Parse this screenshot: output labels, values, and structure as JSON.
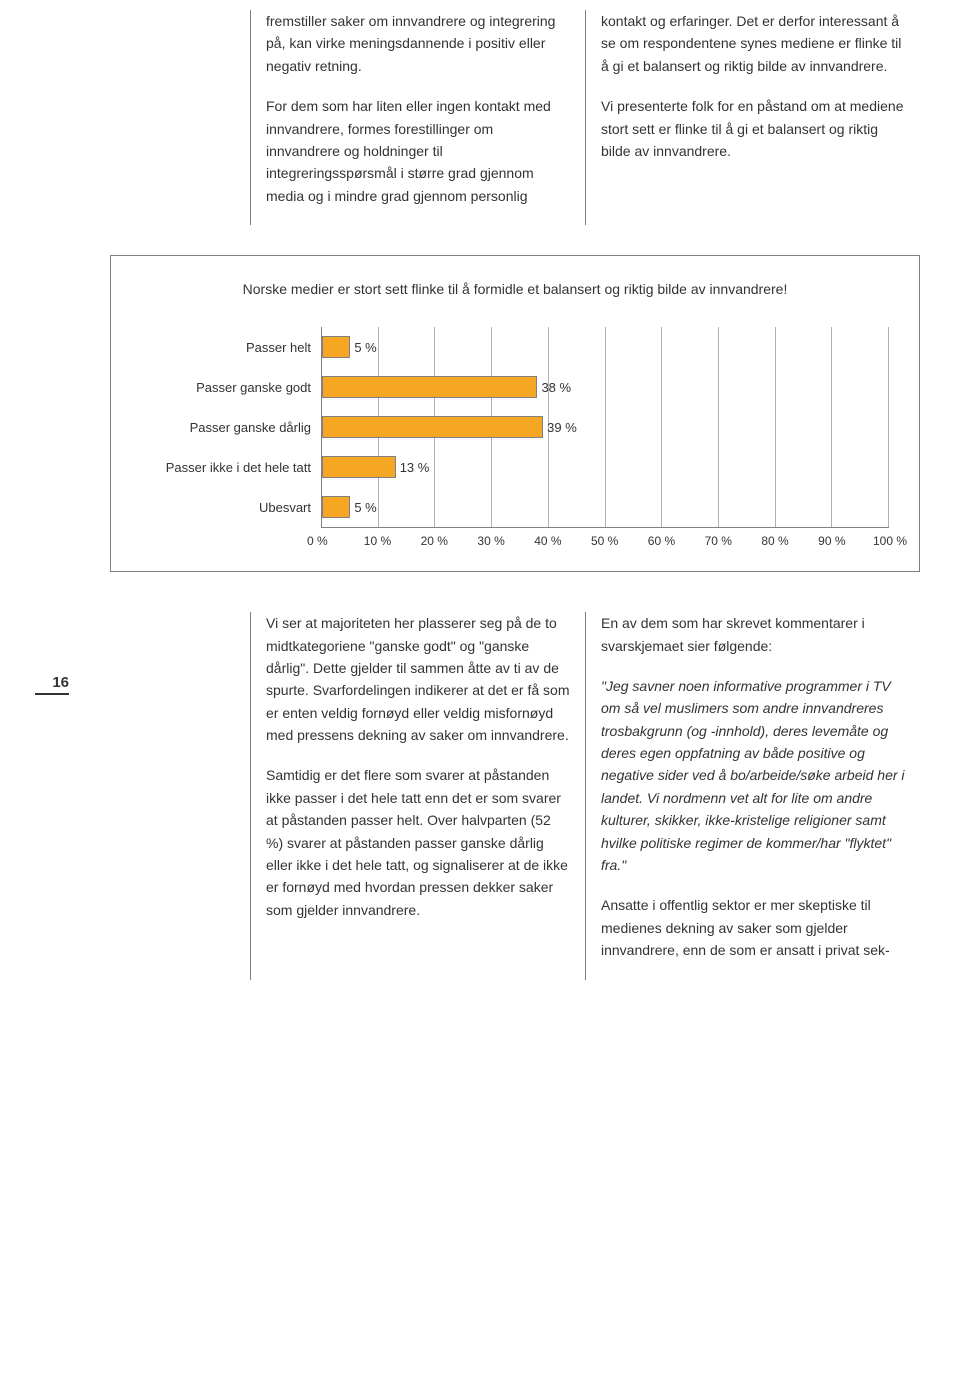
{
  "page_number": "16",
  "top_columns": {
    "left": {
      "p1": "fremstiller saker om innvandrere og integrering på, kan virke meningsdannende i positiv eller negativ retning.",
      "p2": "For dem som har liten eller ingen kontakt med innvandrere, formes forestillinger om innvandrere og holdninger til integreringsspørsmål i større grad gjennom media og i mindre grad gjennom personlig"
    },
    "right": {
      "p1": "kontakt og erfaringer. Det er derfor interessant å se om respondentene synes mediene er flinke til å gi et balansert og riktig bilde av innvandrere.",
      "p2": "Vi presenterte folk for en påstand om at mediene stort sett er flinke til å gi et balansert og riktig bilde av innvandrere."
    }
  },
  "chart": {
    "type": "bar-horizontal",
    "title": "Norske medier er stort sett flinke til å formidle et balansert og riktig bilde av innvandrere!",
    "bar_color": "#f5a623",
    "bar_border": "#808080",
    "grid_color": "#b0b0b0",
    "axis_color": "#808080",
    "background": "#ffffff",
    "xlim": [
      0,
      100
    ],
    "xtick_step": 10,
    "xticks": [
      "0 %",
      "10 %",
      "20 %",
      "30 %",
      "40 %",
      "50 %",
      "60 %",
      "70 %",
      "80 %",
      "90 %",
      "100 %"
    ],
    "categories": [
      {
        "label": "Passer helt",
        "value": 5,
        "display": "5 %"
      },
      {
        "label": "Passer ganske godt",
        "value": 38,
        "display": "38 %"
      },
      {
        "label": "Passer ganske dårlig",
        "value": 39,
        "display": "39 %"
      },
      {
        "label": "Passer ikke i det hele tatt",
        "value": 13,
        "display": "13 %"
      },
      {
        "label": "Ubesvart",
        "value": 5,
        "display": "5 %"
      }
    ]
  },
  "bottom_columns": {
    "left": {
      "p1": "Vi ser at majoriteten her plasserer seg på de to midtkategoriene \"ganske godt\" og \"ganske dårlig\". Dette gjelder til sammen åtte av ti av de spurte. Svarfordelingen indikerer at det er få som er enten veldig fornøyd eller veldig misfornøyd med pressens dekning av saker om innvandrere.",
      "p2": "Samtidig er det flere som svarer at påstanden ikke passer i det hele tatt enn det er som svarer at påstanden passer helt. Over halvparten (52 %) svarer at påstanden passer ganske dårlig eller ikke i det hele tatt, og signaliserer at de ikke er fornøyd med hvordan pressen dekker saker som gjelder innvandrere."
    },
    "right": {
      "p1": "En av dem som har skrevet kommentarer i svarskjemaet sier følgende:",
      "p2": "\"Jeg savner noen informative programmer i TV om så vel muslimers som andre innvandreres trosbakgrunn (og -innhold), deres levemåte og deres egen oppfatning av både positive og negative sider ved å bo/arbeide/søke arbeid her i landet. Vi nordmenn vet alt for lite om andre kulturer, skikker, ikke-kristelige religioner samt hvilke politiske regimer de kommer/har \"flyktet\" fra.\"",
      "p3": "Ansatte i offentlig sektor er mer skeptiske til medienes dekning av saker som gjelder innvandrere, enn de som er ansatt i privat sek-"
    }
  }
}
